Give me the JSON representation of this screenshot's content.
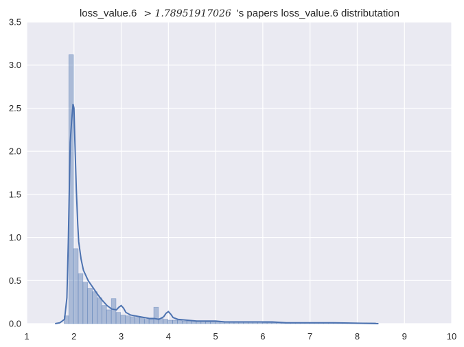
{
  "chart_data": {
    "type": "histogram",
    "title_prefix": "loss_value.6",
    "title_math": "> 1.78951917026",
    "title_suffix": "'s papers loss_value.6 distributation",
    "xlabel": "",
    "ylabel": "",
    "xlim": [
      1,
      10
    ],
    "ylim": [
      0,
      3.5
    ],
    "x_ticks": [
      "1",
      "2",
      "3",
      "4",
      "5",
      "6",
      "7",
      "8",
      "9",
      "10"
    ],
    "y_ticks": [
      "0.0",
      "0.5",
      "1.0",
      "1.5",
      "2.0",
      "2.5",
      "3.0",
      "3.5"
    ],
    "grid": true,
    "bar_color": "#4c72b0",
    "line_color": "#4c72b0",
    "background_color": "#eaeaf2",
    "bin_start": 1.79,
    "bin_width": 0.1,
    "hist_values": [
      0.09,
      3.12,
      0.87,
      0.58,
      0.48,
      0.41,
      0.37,
      0.3,
      0.21,
      0.16,
      0.29,
      0.13,
      0.1,
      0.09,
      0.08,
      0.07,
      0.07,
      0.05,
      0.05,
      0.19,
      0.06,
      0.05,
      0.04,
      0.04,
      0.04,
      0.03,
      0.03,
      0.03,
      0.03,
      0.03,
      0.02,
      0.02,
      0.02,
      0.02,
      0.02,
      0.02,
      0.02,
      0.02,
      0.02,
      0.02,
      0.02,
      0.02,
      0.01,
      0.01,
      0.01,
      0.01,
      0.01,
      0.01,
      0.01,
      0.01,
      0.01,
      0.01,
      0.01,
      0.01,
      0.01,
      0.01,
      0.01,
      0.01,
      0.01,
      0.01,
      0.01,
      0.01,
      0.01,
      0.01,
      0.01,
      0.01
    ],
    "kde_x": [
      1.6,
      1.7,
      1.8,
      1.85,
      1.88,
      1.92,
      1.95,
      1.98,
      2.0,
      2.02,
      2.05,
      2.08,
      2.1,
      2.15,
      2.2,
      2.3,
      2.4,
      2.5,
      2.6,
      2.7,
      2.8,
      2.9,
      2.95,
      3.0,
      3.05,
      3.1,
      3.2,
      3.3,
      3.4,
      3.5,
      3.6,
      3.7,
      3.8,
      3.9,
      3.95,
      4.0,
      4.05,
      4.1,
      4.2,
      4.4,
      4.6,
      4.8,
      5.0,
      5.2,
      5.5,
      5.8,
      6.0,
      6.2,
      6.5,
      7.0,
      7.5,
      8.0,
      8.45
    ],
    "kde_y": [
      0.0,
      0.01,
      0.05,
      0.3,
      0.95,
      2.1,
      2.35,
      2.55,
      2.5,
      2.1,
      1.55,
      1.15,
      0.95,
      0.75,
      0.62,
      0.5,
      0.42,
      0.34,
      0.27,
      0.21,
      0.17,
      0.16,
      0.19,
      0.21,
      0.18,
      0.13,
      0.1,
      0.09,
      0.08,
      0.07,
      0.06,
      0.06,
      0.05,
      0.08,
      0.12,
      0.14,
      0.11,
      0.07,
      0.05,
      0.04,
      0.03,
      0.03,
      0.03,
      0.02,
      0.02,
      0.02,
      0.02,
      0.02,
      0.01,
      0.01,
      0.01,
      0.005,
      0.0
    ]
  }
}
